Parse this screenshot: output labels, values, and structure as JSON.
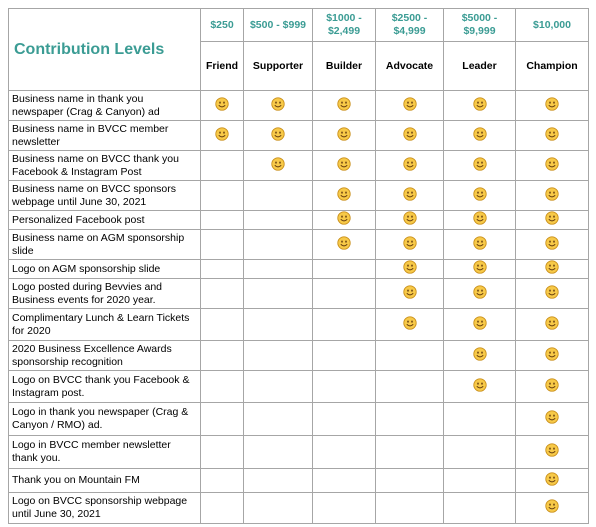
{
  "header": {
    "title": "Contribution Levels"
  },
  "levels": [
    {
      "price": "$250",
      "name": "Friend"
    },
    {
      "price": "$500 - $999",
      "name": "Supporter"
    },
    {
      "price": "$1000 - $2,499",
      "name": "Builder"
    },
    {
      "price": "$2500 - $4,999",
      "name": "Advocate"
    },
    {
      "price": "$5000 - $9,999",
      "name": "Leader"
    },
    {
      "price": "$10,000",
      "name": "Champion"
    }
  ],
  "rows": [
    {
      "label": "Business name in thank you newspaper (Crag & Canyon) ad",
      "included": [
        true,
        true,
        true,
        true,
        true,
        true
      ]
    },
    {
      "label": "Business name in BVCC member newsletter",
      "included": [
        true,
        true,
        true,
        true,
        true,
        true
      ]
    },
    {
      "label": "Business name on BVCC thank you Facebook & Instagram Post",
      "included": [
        false,
        true,
        true,
        true,
        true,
        true
      ]
    },
    {
      "label": "Business name on BVCC sponsors webpage until June 30, 2021",
      "included": [
        false,
        false,
        true,
        true,
        true,
        true
      ]
    },
    {
      "label": "Personalized Facebook post",
      "included": [
        false,
        false,
        true,
        true,
        true,
        true
      ]
    },
    {
      "label": "Business name on AGM sponsorship slide",
      "included": [
        false,
        false,
        true,
        true,
        true,
        true
      ]
    },
    {
      "label": "Logo on AGM sponsorship slide",
      "included": [
        false,
        false,
        false,
        true,
        true,
        true
      ]
    },
    {
      "label": "Logo posted during Bevvies and Business events for 2020 year.",
      "included": [
        false,
        false,
        false,
        true,
        true,
        true
      ]
    },
    {
      "label": "Complimentary Lunch & Learn Tickets for 2020",
      "included": [
        false,
        false,
        false,
        true,
        true,
        true
      ]
    },
    {
      "label": "2020 Business Excellence Awards sponsorship recognition",
      "included": [
        false,
        false,
        false,
        false,
        true,
        true
      ]
    },
    {
      "label": "Logo on BVCC thank you Facebook & Instagram post.",
      "included": [
        false,
        false,
        false,
        false,
        true,
        true
      ]
    },
    {
      "label": "Logo in thank you newspaper (Crag & Canyon / RMO) ad.",
      "included": [
        false,
        false,
        false,
        false,
        false,
        true
      ]
    },
    {
      "label": "Logo in BVCC member newsletter thank you.",
      "included": [
        false,
        false,
        false,
        false,
        false,
        true
      ]
    },
    {
      "label": "Thank you on Mountain FM",
      "included": [
        false,
        false,
        false,
        false,
        false,
        true
      ]
    },
    {
      "label": "Logo on BVCC sponsorship webpage until June 30, 2021",
      "included": [
        false,
        false,
        false,
        false,
        false,
        true
      ]
    }
  ]
}
